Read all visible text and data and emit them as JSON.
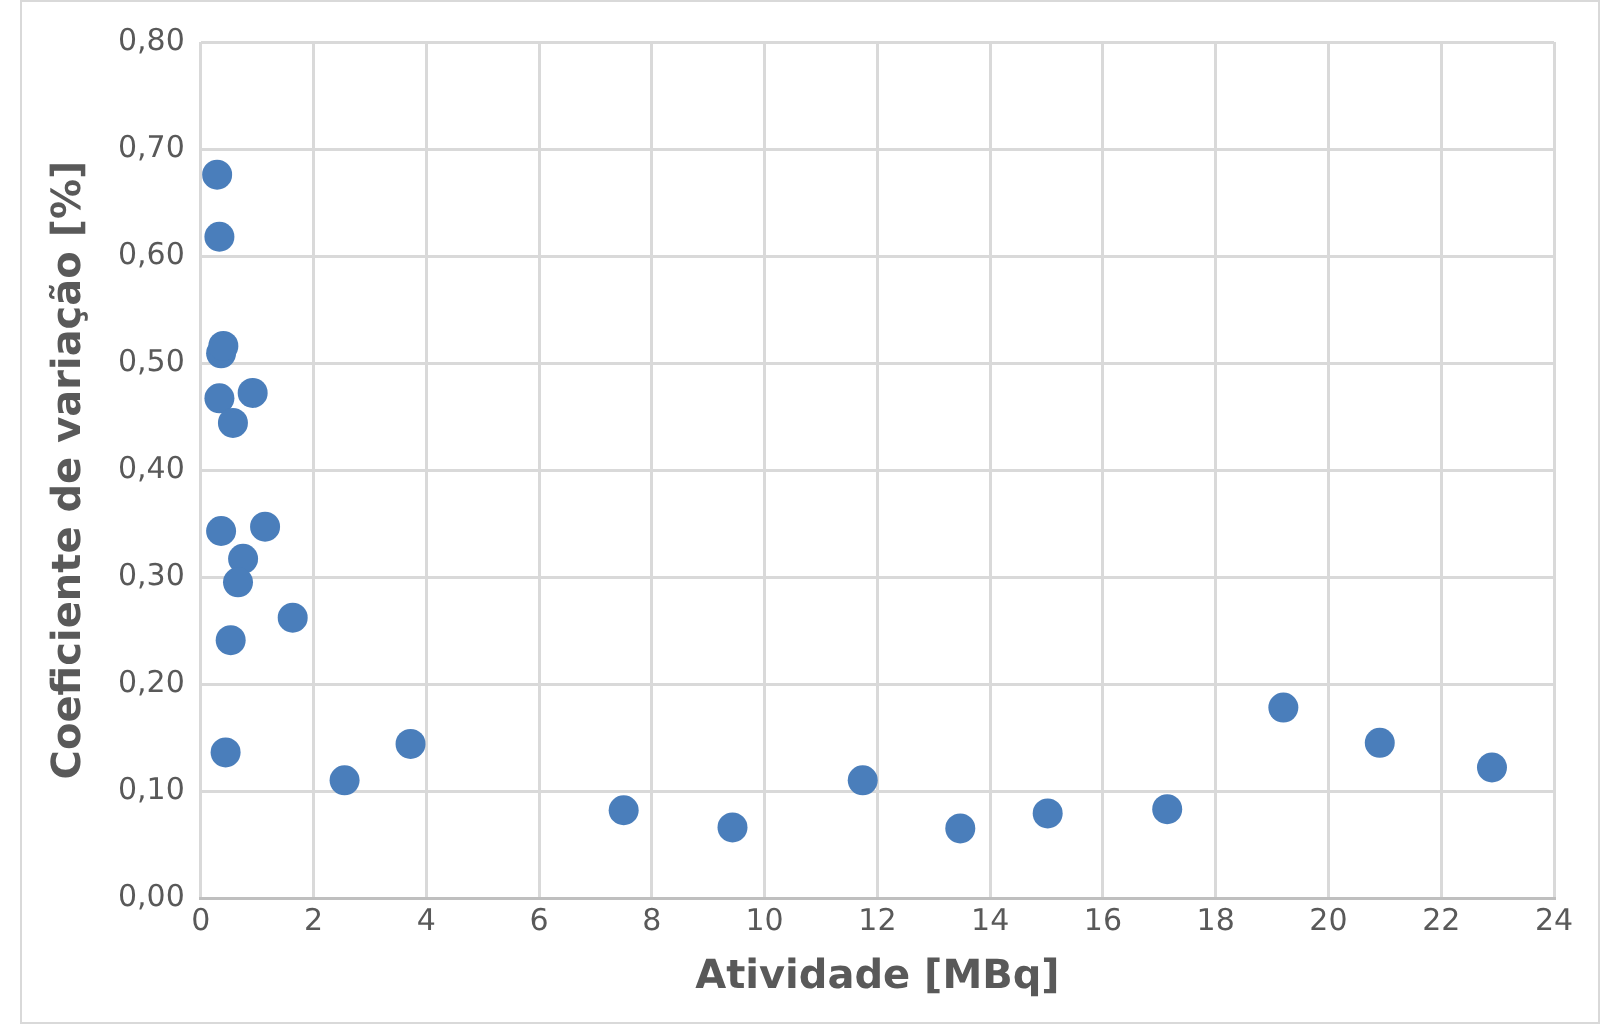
{
  "chart_data": {
    "type": "scatter",
    "xlabel": "Atividade [MBq]",
    "ylabel": "Coeficiente de variação [%]",
    "x": [
      0.29,
      0.33,
      0.36,
      0.4,
      0.33,
      0.92,
      0.57,
      0.36,
      1.14,
      0.75,
      0.66,
      1.63,
      0.53,
      0.44,
      2.55,
      3.72,
      7.5,
      9.43,
      11.74,
      13.47,
      15.02,
      17.14,
      19.2,
      20.91,
      22.9
    ],
    "values": [
      0.676,
      0.618,
      0.509,
      0.516,
      0.467,
      0.472,
      0.444,
      0.343,
      0.347,
      0.317,
      0.295,
      0.262,
      0.241,
      0.136,
      0.11,
      0.144,
      0.082,
      0.066,
      0.11,
      0.065,
      0.079,
      0.083,
      0.178,
      0.145,
      0.122
    ],
    "color": "#4a7ebb",
    "marker": "circle",
    "grid": true,
    "legend": false,
    "xlim": [
      0,
      24
    ],
    "xticks": [
      0,
      2,
      4,
      6,
      8,
      10,
      12,
      14,
      16,
      18,
      20,
      22,
      24
    ],
    "ylim": [
      0,
      0.8
    ],
    "yticks": [
      {
        "value": 0,
        "label": "0,00"
      },
      {
        "value": 0.1,
        "label": "0,10"
      },
      {
        "value": 0.2,
        "label": "0,20"
      },
      {
        "value": 0.3,
        "label": "0,30"
      },
      {
        "value": 0.4,
        "label": "0,40"
      },
      {
        "value": 0.5,
        "label": "0,50"
      },
      {
        "value": 0.6,
        "label": "0,60"
      },
      {
        "value": 0.7,
        "label": "0,70"
      },
      {
        "value": 0.8,
        "label": "0,80"
      }
    ]
  }
}
